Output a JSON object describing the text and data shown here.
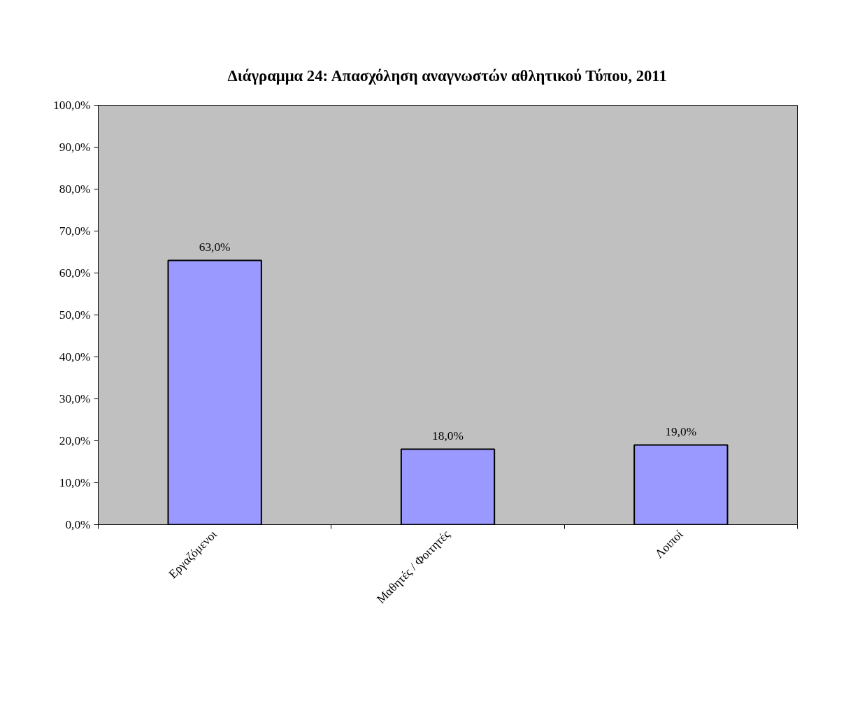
{
  "chart_data": {
    "type": "bar",
    "title": "Διάγραμμα 24: Απασχόληση αναγνωστών αθλητικού Τύπου, 2011",
    "categories": [
      "Εργαζόμενοι",
      "Μαθητές / Φοιτητές",
      "Λοιποί"
    ],
    "values": [
      63,
      18,
      19
    ],
    "value_labels": [
      "63,0%",
      "18,0%",
      "19,0%"
    ],
    "color": "#9999ff",
    "ylim": [
      0,
      100
    ],
    "yticks": [
      {
        "value": 0,
        "label": "0,0%"
      },
      {
        "value": 10,
        "label": "10,0%"
      },
      {
        "value": 20,
        "label": "20,0%"
      },
      {
        "value": 30,
        "label": "30,0%"
      },
      {
        "value": 40,
        "label": "40,0%"
      },
      {
        "value": 50,
        "label": "50,0%"
      },
      {
        "value": 60,
        "label": "60,0%"
      },
      {
        "value": 70,
        "label": "70,0%"
      },
      {
        "value": 80,
        "label": "80,0%"
      },
      {
        "value": 90,
        "label": "90,0%"
      },
      {
        "value": 100,
        "label": "100,0%"
      }
    ],
    "grid": false
  }
}
